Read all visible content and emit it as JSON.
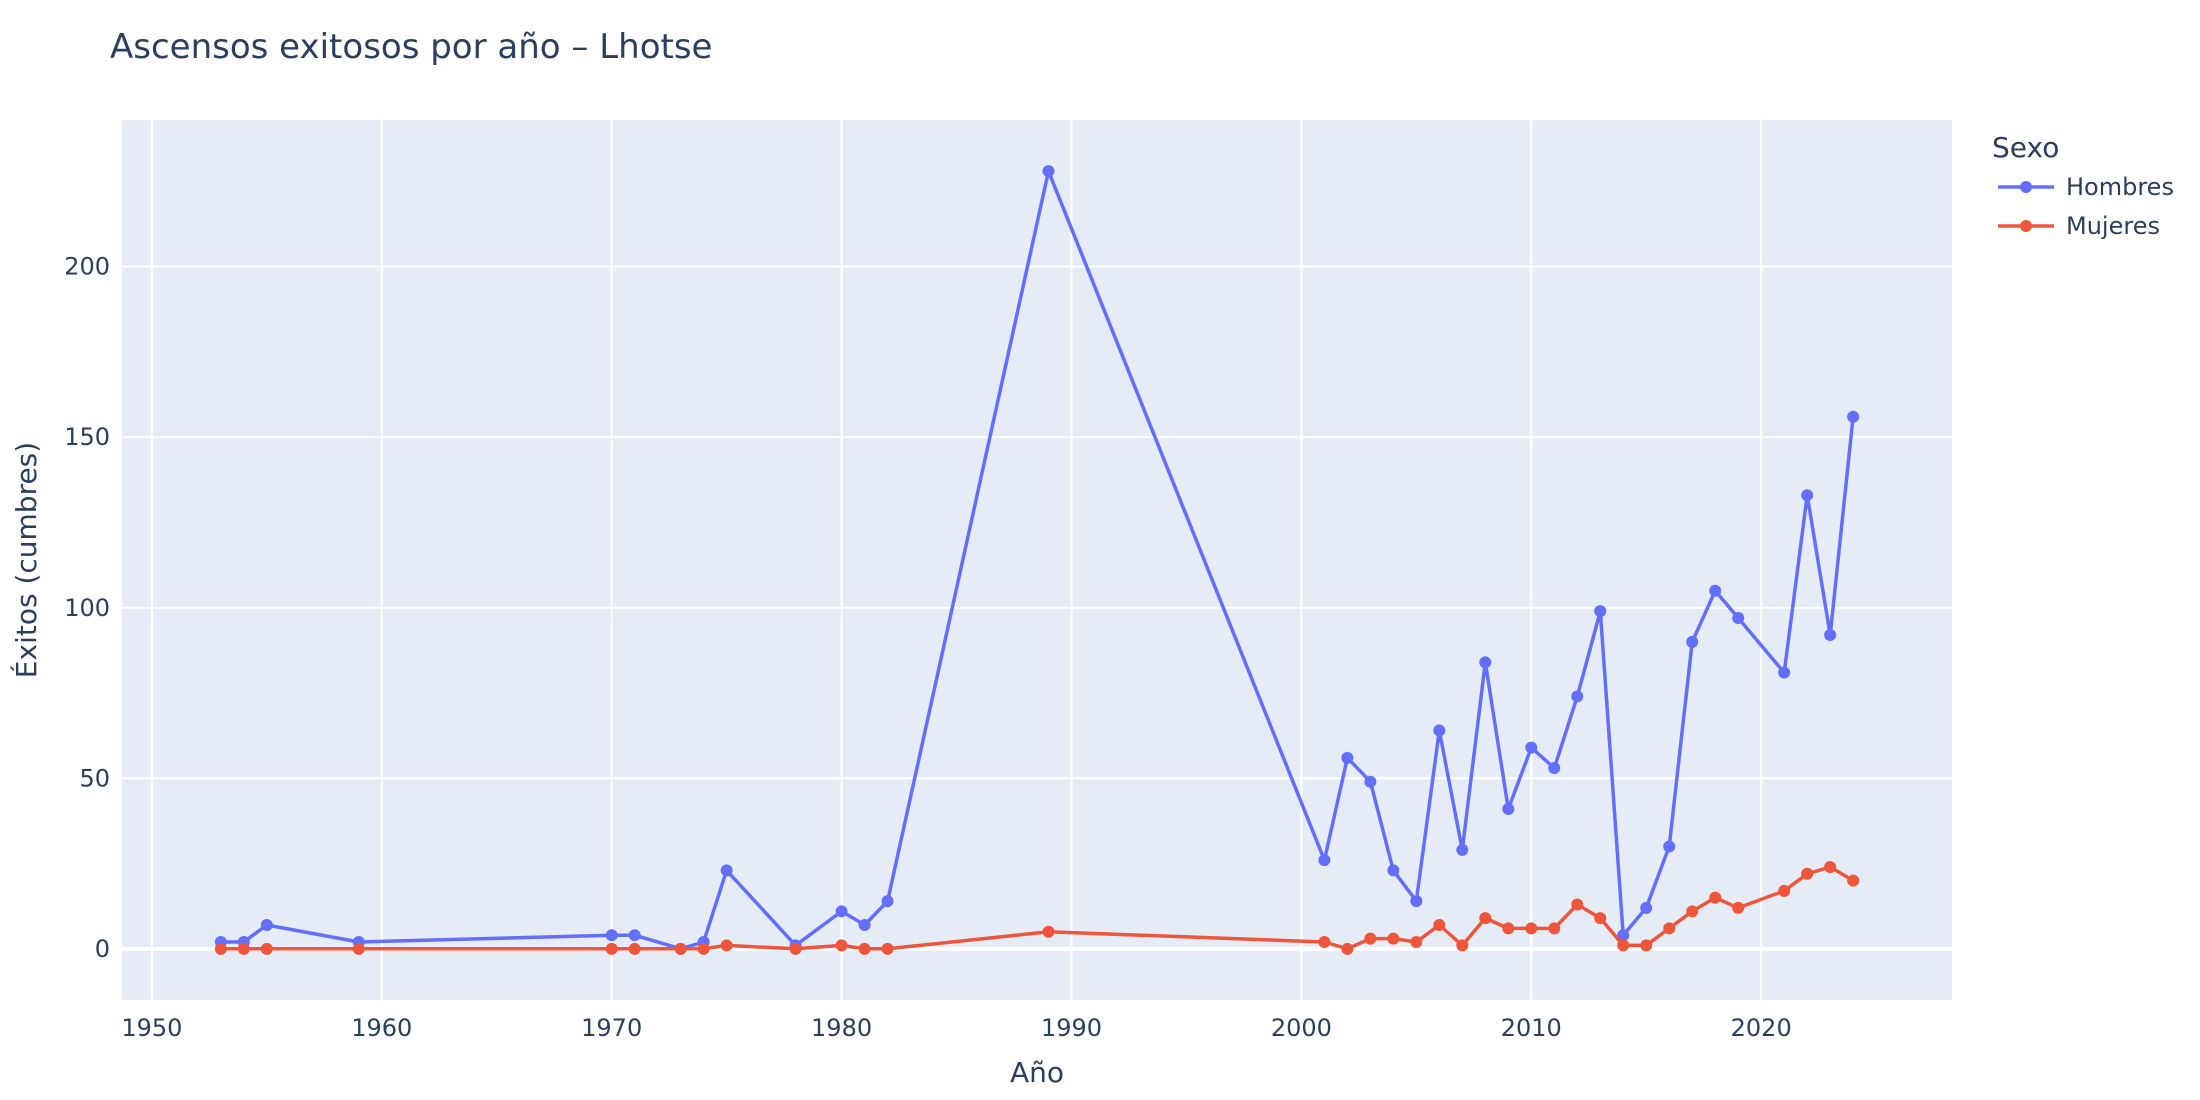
{
  "chart_data": {
    "type": "line",
    "title": "Ascensos exitosos por año – Lhotse",
    "xlabel": "Año",
    "ylabel": "Éxitos (cumbres)",
    "xlim": [
      1948.7,
      2028.3
    ],
    "ylim": [
      -15,
      243
    ],
    "x_ticks": [
      1950,
      1960,
      1970,
      1980,
      1990,
      2000,
      2010,
      2020
    ],
    "y_ticks": [
      0,
      50,
      100,
      150,
      200
    ],
    "grid": true,
    "legend": {
      "title": "Sexo",
      "position": "top-right-outside"
    },
    "series": [
      {
        "name": "Hombres",
        "color": "#636efa",
        "x": [
          1953,
          1954,
          1955,
          1959,
          1970,
          1971,
          1973,
          1974,
          1975,
          1978,
          1980,
          1981,
          1982,
          1989,
          2001,
          2002,
          2003,
          2004,
          2005,
          2006,
          2007,
          2008,
          2009,
          2010,
          2011,
          2012,
          2013,
          2014,
          2015,
          2016,
          2017,
          2018,
          2019,
          2021,
          2022,
          2023,
          2024
        ],
        "y": [
          2,
          2,
          7,
          2,
          4,
          4,
          0,
          2,
          23,
          1,
          11,
          7,
          14,
          228,
          26,
          56,
          49,
          23,
          14,
          64,
          29,
          84,
          41,
          59,
          53,
          74,
          99,
          4,
          12,
          30,
          90,
          105,
          97,
          81,
          133,
          92,
          156
        ]
      },
      {
        "name": "Mujeres",
        "color": "#ef553b",
        "x": [
          1953,
          1954,
          1955,
          1959,
          1970,
          1971,
          1973,
          1974,
          1975,
          1978,
          1980,
          1981,
          1982,
          1989,
          2001,
          2002,
          2003,
          2004,
          2005,
          2006,
          2007,
          2008,
          2009,
          2010,
          2011,
          2012,
          2013,
          2014,
          2015,
          2016,
          2017,
          2018,
          2019,
          2021,
          2022,
          2023,
          2024
        ],
        "y": [
          0,
          0,
          0,
          0,
          0,
          0,
          0,
          0,
          1,
          0,
          1,
          0,
          0,
          5,
          2,
          0,
          3,
          3,
          2,
          7,
          1,
          9,
          6,
          6,
          6,
          13,
          9,
          1,
          1,
          6,
          11,
          15,
          12,
          17,
          22,
          24,
          20
        ]
      }
    ]
  }
}
